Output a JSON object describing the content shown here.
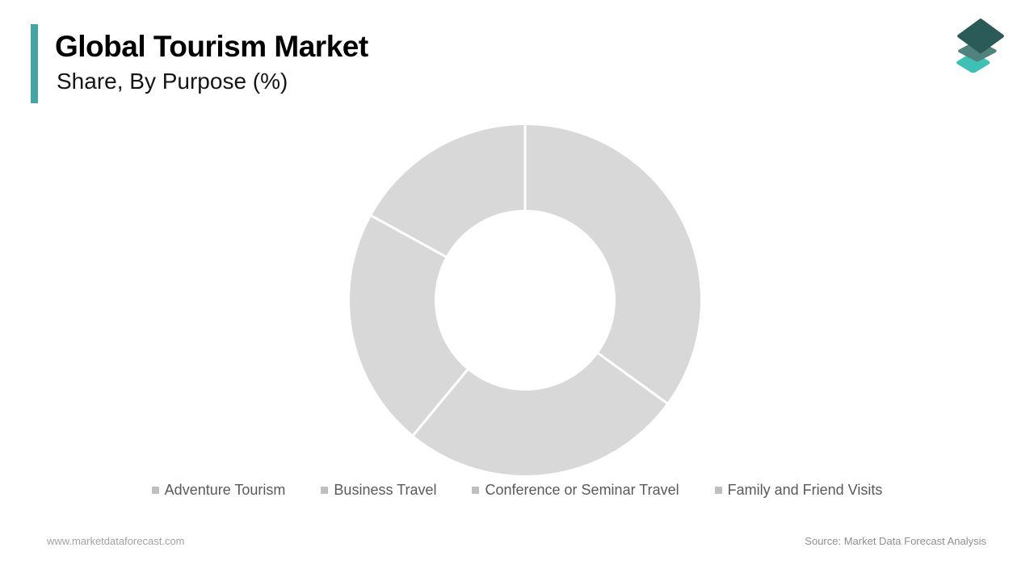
{
  "page": {
    "background_color": "#FFFFFF"
  },
  "header": {
    "title": "Global Tourism Market",
    "subtitle": "Share, By Purpose (%)",
    "accent_color": "#45A5A3",
    "logo": {
      "name": "market-data-forecast-logo",
      "layer_colors": [
        "#3FC0B5",
        "#50827E",
        "#2B5B58"
      ]
    }
  },
  "chart_data": {
    "type": "pie",
    "variant": "donut",
    "title": "Global Tourism Market Share, By Purpose (%)",
    "categories": [
      "Adventure Tourism",
      "Business Travel",
      "Conference or Seminar Travel",
      "Family and Friend Visits"
    ],
    "values": [
      35,
      26,
      22,
      17
    ],
    "unit": "%",
    "start_angle_deg": 0,
    "direction": "clockwise",
    "segment_color": "#D8D8D8",
    "divider_color": "#FFFFFF",
    "outer_radius": 217,
    "inner_radius": 112,
    "data_labels": "none",
    "legend_position": "bottom"
  },
  "legend": {
    "marker_color": "#BFBFBF",
    "text_color": "#595959"
  },
  "footer": {
    "website": "www.marketdataforecast.com",
    "source": "Source: Market Data Forecast Analysis"
  }
}
